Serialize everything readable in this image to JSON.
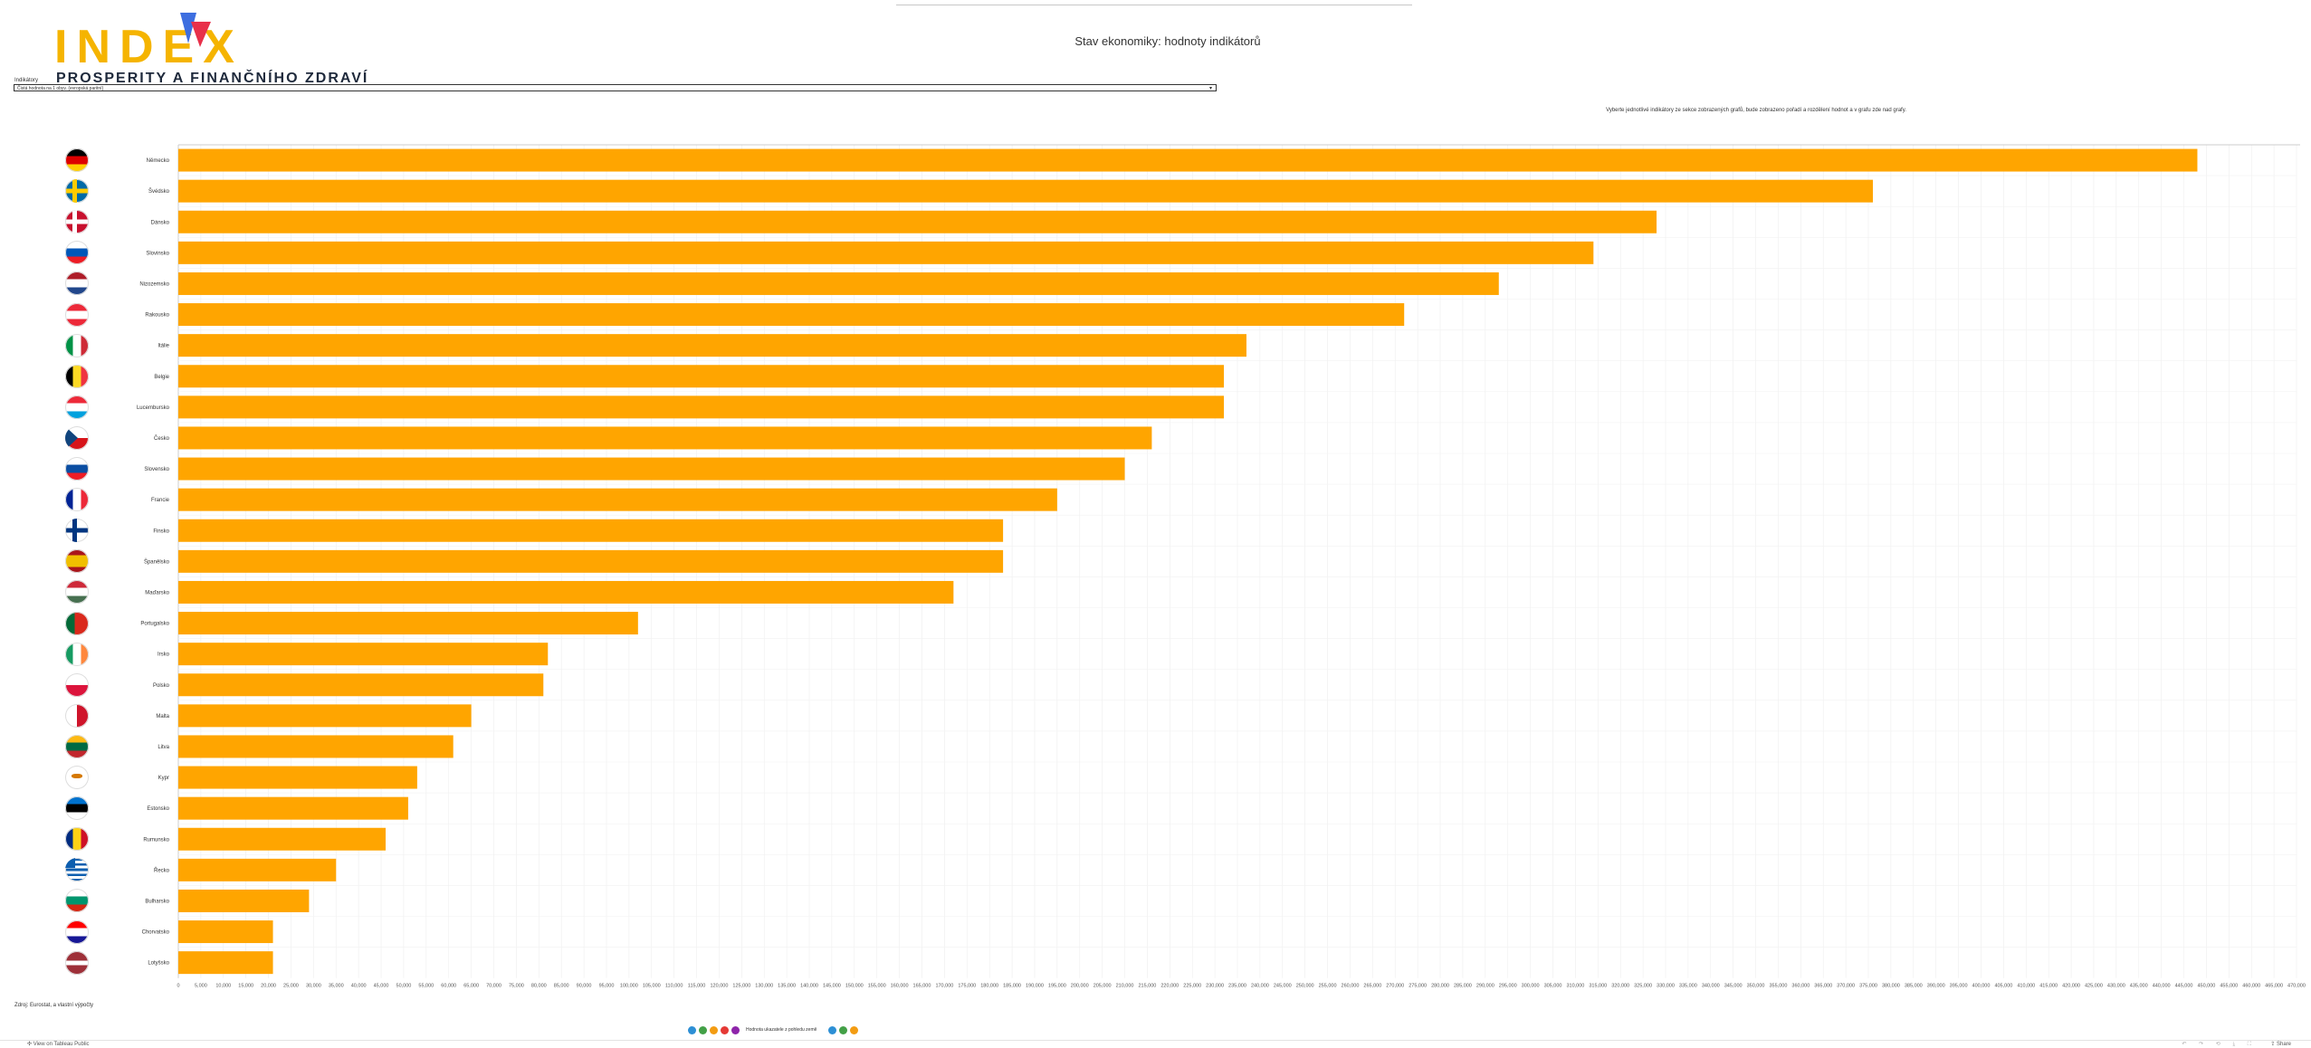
{
  "header": {
    "logo_word": "INDEX",
    "logo_subtitle": "PROSPERITY A FINANČNÍHO ZDRAVÍ",
    "page_title": "Stav ekonomiky: hodnoty indikátorů"
  },
  "filter": {
    "label": "Indikátory",
    "selected": "Čistá hodnota na 1 obyv. (evropská paritní)"
  },
  "note": "Vyberte jednotlivé indikátory ze sekce zobrazených grafů, bude zobrazeno pořadí a rozdělení hodnot a v grafu zde nad grafy.",
  "footnote": "Zdroj: Eurostat, a vlastní výpočty",
  "legend": {
    "label": "Hodnota ukazatele z pohledu země",
    "colors": [
      "#2d8fd5",
      "#43a047",
      "#f39c12",
      "#e53935",
      "#8e24aa"
    ]
  },
  "bottom": {
    "view_on": "View on Tableau Public",
    "share": "Share"
  },
  "colors": {
    "bar": "#ffa500",
    "grid": "#eeeeee",
    "axis": "#cccccc"
  },
  "chart_data": {
    "type": "bar",
    "orientation": "horizontal",
    "categories": [
      "Německo",
      "Švédsko",
      "Dánsko",
      "Slovinsko",
      "Nizozemsko",
      "Rakousko",
      "Itálie",
      "Belgie",
      "Lucembursko",
      "Česko",
      "Slovensko",
      "Francie",
      "Finsko",
      "Španělsko",
      "Maďarsko",
      "Portugalsko",
      "Irsko",
      "Polsko",
      "Malta",
      "Litva",
      "Kypr",
      "Estonsko",
      "Rumunsko",
      "Řecko",
      "Bulharsko",
      "Chorvatsko",
      "Lotyšsko"
    ],
    "values": [
      448000,
      376000,
      328000,
      314000,
      293000,
      272000,
      237000,
      232000,
      232000,
      216000,
      210000,
      195000,
      183000,
      183000,
      172000,
      102000,
      82000,
      81000,
      65000,
      61000,
      53000,
      51000,
      46000,
      35000,
      29000,
      21000,
      21000
    ],
    "flags": [
      "de",
      "se",
      "dk",
      "si",
      "nl",
      "at",
      "it",
      "be",
      "lu",
      "cz",
      "sk",
      "fr",
      "fi",
      "es",
      "hu",
      "pt",
      "ie",
      "pl",
      "mt",
      "lt",
      "cy",
      "ee",
      "ro",
      "gr",
      "bg",
      "hr",
      "lv"
    ],
    "xlim": [
      0,
      470000
    ],
    "xtick_step": 5000,
    "xlabel": "",
    "ylabel": "",
    "title": "",
    "grid": true
  }
}
